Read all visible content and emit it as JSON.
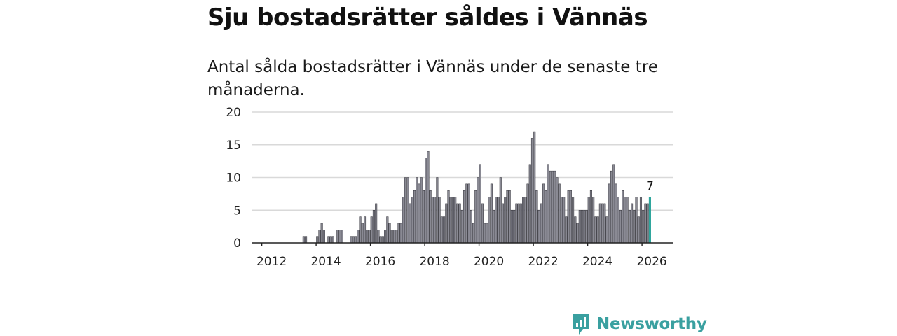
{
  "header": {
    "title": "Sju bostadsrätter såldes i Vännäs",
    "subtitle": "Antal sålda bostadsrätter i Vännäs under de senaste tre månaderna."
  },
  "chart_data": {
    "type": "bar",
    "title": "Antal sålda bostadsrätter i Vännäs",
    "xlabel": "",
    "ylabel": "",
    "ylim": [
      0,
      20
    ],
    "yticks": [
      0,
      5,
      10,
      15,
      20
    ],
    "x_tick_labels": [
      "2012",
      "2014",
      "2016",
      "2018",
      "2020",
      "2022",
      "2024",
      "2026"
    ],
    "start": "2012-01",
    "frequency": "monthly",
    "grid": true,
    "highlight_last": true,
    "last_label": "7",
    "colors": {
      "bar": "#8a8a94",
      "bar_stroke": "#2f2f36",
      "highlight": "#28a39a",
      "grid": "#d9d9d9",
      "axis": "#222222"
    },
    "values": [
      0,
      0,
      0,
      0,
      0,
      0,
      0,
      0,
      0,
      0,
      0,
      0,
      0,
      0,
      0,
      0,
      0,
      0,
      1,
      1,
      0,
      0,
      0,
      0,
      1,
      2,
      3,
      2,
      0,
      1,
      1,
      1,
      0,
      2,
      2,
      2,
      0,
      0,
      0,
      1,
      1,
      1,
      2,
      4,
      3,
      4,
      2,
      2,
      4,
      5,
      6,
      2,
      1,
      1,
      2,
      4,
      3,
      2,
      2,
      2,
      3,
      3,
      7,
      10,
      10,
      6,
      7,
      8,
      10,
      9,
      10,
      8,
      13,
      14,
      8,
      7,
      7,
      10,
      7,
      4,
      4,
      6,
      8,
      7,
      7,
      7,
      6,
      6,
      5,
      8,
      9,
      9,
      5,
      3,
      8,
      10,
      12,
      6,
      3,
      3,
      7,
      9,
      5,
      7,
      7,
      10,
      6,
      7,
      8,
      8,
      5,
      5,
      6,
      6,
      6,
      7,
      7,
      9,
      12,
      16,
      17,
      8,
      5,
      6,
      9,
      8,
      12,
      11,
      11,
      11,
      10,
      9,
      7,
      7,
      4,
      8,
      8,
      7,
      4,
      3,
      5,
      5,
      5,
      5,
      7,
      8,
      7,
      4,
      4,
      6,
      6,
      6,
      4,
      9,
      11,
      12,
      9,
      7,
      5,
      8,
      7,
      7,
      5,
      6,
      5,
      7,
      4,
      7,
      5,
      6,
      6,
      7
    ]
  },
  "brand": {
    "name": "Newsworthy",
    "icon": "bar-chart-logo-icon"
  }
}
